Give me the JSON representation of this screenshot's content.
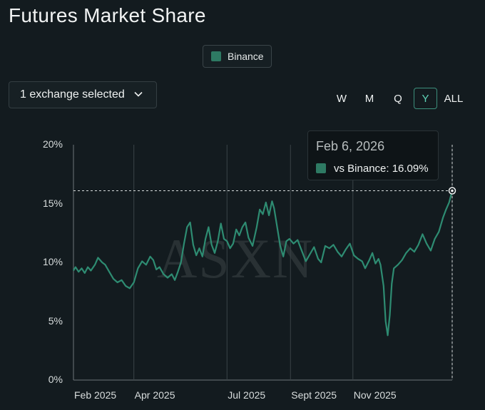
{
  "title": "Futures Market Share",
  "legend": {
    "label": "Binance",
    "color": "#2e7a63"
  },
  "selector": {
    "label": "1 exchange selected"
  },
  "ranges": [
    {
      "label": "W",
      "active": false
    },
    {
      "label": "M",
      "active": false
    },
    {
      "label": "Q",
      "active": false
    },
    {
      "label": "Y",
      "active": true
    },
    {
      "label": "ALL",
      "active": false
    }
  ],
  "watermark": "ASXN",
  "tooltip": {
    "date": "Feb 6, 2026",
    "value_label": "vs Binance: 16.09%"
  },
  "colors": {
    "line": "#2e8c72",
    "background": "#131b1f",
    "grid": "#3a4347"
  },
  "chart_data": {
    "type": "line",
    "title": "Futures Market Share",
    "ylabel": "",
    "xlabel": "",
    "ylim": [
      0,
      20
    ],
    "yticks": [
      "20%",
      "15%",
      "10%",
      "5%",
      "0%"
    ],
    "xticks": [
      "Feb 2025",
      "Apr 2025",
      "Jul 2025",
      "Sept 2025",
      "Nov 2025"
    ],
    "xlim": [
      "2025-02-01",
      "2026-02-06"
    ],
    "grid": "vertical",
    "highlight": {
      "x": "2026-02-06",
      "y": 16.09
    },
    "series": [
      {
        "name": "Binance",
        "points": [
          [
            "2025-02-01",
            9.3
          ],
          [
            "2025-02-03",
            9.6
          ],
          [
            "2025-02-06",
            9.2
          ],
          [
            "2025-02-09",
            9.5
          ],
          [
            "2025-02-12",
            9.1
          ],
          [
            "2025-02-15",
            9.6
          ],
          [
            "2025-02-18",
            9.3
          ],
          [
            "2025-02-22",
            9.8
          ],
          [
            "2025-02-25",
            10.4
          ],
          [
            "2025-03-01",
            10.0
          ],
          [
            "2025-03-04",
            9.8
          ],
          [
            "2025-03-08",
            9.2
          ],
          [
            "2025-03-12",
            8.6
          ],
          [
            "2025-03-16",
            8.3
          ],
          [
            "2025-03-20",
            8.5
          ],
          [
            "2025-03-24",
            8.0
          ],
          [
            "2025-03-28",
            7.8
          ],
          [
            "2025-04-01",
            8.3
          ],
          [
            "2025-04-05",
            9.5
          ],
          [
            "2025-04-09",
            10.1
          ],
          [
            "2025-04-13",
            9.8
          ],
          [
            "2025-04-17",
            10.5
          ],
          [
            "2025-04-20",
            10.2
          ],
          [
            "2025-04-23",
            9.4
          ],
          [
            "2025-04-26",
            9.6
          ],
          [
            "2025-04-30",
            9.0
          ],
          [
            "2025-05-04",
            8.7
          ],
          [
            "2025-05-08",
            9.0
          ],
          [
            "2025-05-11",
            8.5
          ],
          [
            "2025-05-14",
            9.2
          ],
          [
            "2025-05-17",
            10.0
          ],
          [
            "2025-05-20",
            11.6
          ],
          [
            "2025-05-23",
            13.0
          ],
          [
            "2025-05-26",
            13.4
          ],
          [
            "2025-05-29",
            11.5
          ],
          [
            "2025-06-01",
            10.6
          ],
          [
            "2025-06-04",
            11.2
          ],
          [
            "2025-06-07",
            10.5
          ],
          [
            "2025-06-10",
            12.0
          ],
          [
            "2025-06-13",
            13.0
          ],
          [
            "2025-06-16",
            11.5
          ],
          [
            "2025-06-19",
            10.8
          ],
          [
            "2025-06-22",
            11.8
          ],
          [
            "2025-06-25",
            13.3
          ],
          [
            "2025-06-28",
            12.0
          ],
          [
            "2025-07-01",
            11.8
          ],
          [
            "2025-07-04",
            11.2
          ],
          [
            "2025-07-07",
            11.6
          ],
          [
            "2025-07-10",
            12.8
          ],
          [
            "2025-07-13",
            12.3
          ],
          [
            "2025-07-16",
            13.0
          ],
          [
            "2025-07-19",
            13.4
          ],
          [
            "2025-07-22",
            12.1
          ],
          [
            "2025-07-26",
            11.4
          ],
          [
            "2025-07-30",
            13.0
          ],
          [
            "2025-08-02",
            14.5
          ],
          [
            "2025-08-05",
            14.1
          ],
          [
            "2025-08-08",
            15.1
          ],
          [
            "2025-08-11",
            14.0
          ],
          [
            "2025-08-14",
            15.2
          ],
          [
            "2025-08-16",
            14.6
          ],
          [
            "2025-08-19",
            13.0
          ],
          [
            "2025-08-22",
            11.4
          ],
          [
            "2025-08-25",
            10.5
          ],
          [
            "2025-08-28",
            11.8
          ],
          [
            "2025-08-31",
            12.0
          ],
          [
            "2025-09-04",
            11.6
          ],
          [
            "2025-09-08",
            11.9
          ],
          [
            "2025-09-12",
            11.0
          ],
          [
            "2025-09-16",
            10.1
          ],
          [
            "2025-09-20",
            10.7
          ],
          [
            "2025-09-24",
            11.3
          ],
          [
            "2025-09-28",
            10.3
          ],
          [
            "2025-10-01",
            10.0
          ],
          [
            "2025-10-05",
            11.4
          ],
          [
            "2025-10-09",
            11.2
          ],
          [
            "2025-10-13",
            11.5
          ],
          [
            "2025-10-17",
            10.9
          ],
          [
            "2025-10-21",
            10.5
          ],
          [
            "2025-10-25",
            11.1
          ],
          [
            "2025-10-29",
            11.6
          ],
          [
            "2025-11-02",
            10.6
          ],
          [
            "2025-11-06",
            10.3
          ],
          [
            "2025-11-10",
            10.1
          ],
          [
            "2025-11-13",
            9.5
          ],
          [
            "2025-11-17",
            10.2
          ],
          [
            "2025-11-20",
            10.8
          ],
          [
            "2025-11-23",
            9.9
          ],
          [
            "2025-11-26",
            10.3
          ],
          [
            "2025-11-28",
            9.8
          ],
          [
            "2025-12-01",
            8.0
          ],
          [
            "2025-12-03",
            5.0
          ],
          [
            "2025-12-05",
            3.8
          ],
          [
            "2025-12-07",
            5.5
          ],
          [
            "2025-12-09",
            8.2
          ],
          [
            "2025-12-11",
            9.5
          ],
          [
            "2025-12-15",
            9.8
          ],
          [
            "2025-12-19",
            10.2
          ],
          [
            "2025-12-23",
            10.8
          ],
          [
            "2025-12-27",
            11.2
          ],
          [
            "2025-12-31",
            10.9
          ],
          [
            "2026-01-04",
            11.5
          ],
          [
            "2026-01-08",
            12.4
          ],
          [
            "2026-01-12",
            11.6
          ],
          [
            "2026-01-16",
            11.0
          ],
          [
            "2026-01-20",
            12.0
          ],
          [
            "2026-01-24",
            12.6
          ],
          [
            "2026-01-28",
            13.8
          ],
          [
            "2026-01-31",
            14.5
          ],
          [
            "2026-02-03",
            15.1
          ],
          [
            "2026-02-06",
            16.09
          ]
        ]
      }
    ]
  }
}
